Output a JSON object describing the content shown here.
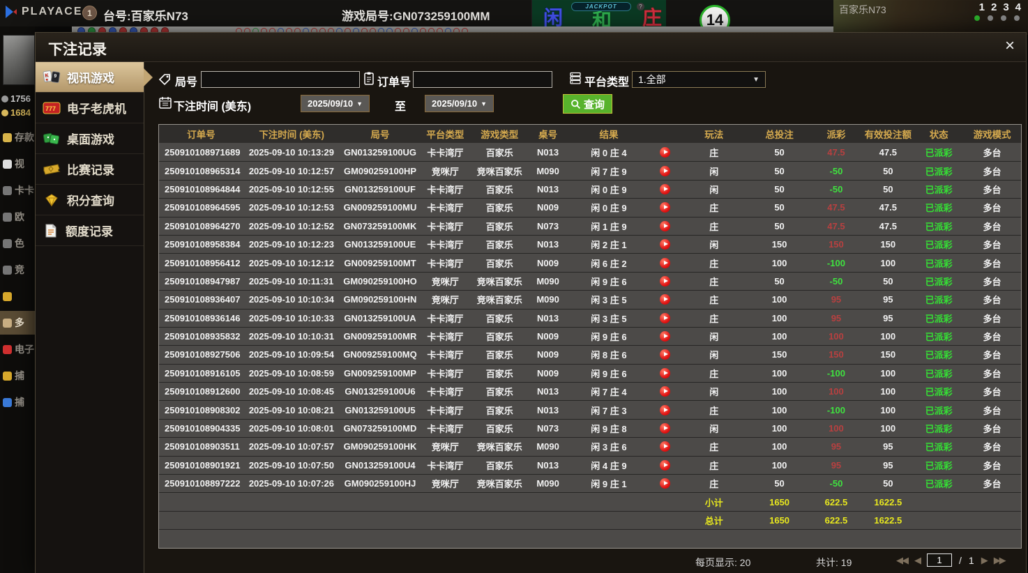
{
  "top_bar": {
    "brand": "PLAYACE",
    "round_badge": "1",
    "table_label": "台号:百家乐N73",
    "round_label": "游戏局号:GN073259100MM",
    "bet_player": "闲",
    "bet_tie": "和",
    "bet_banker": "庄",
    "jackpot_label": "JACKPOT",
    "question_mark": "?",
    "timer": "14",
    "video_title": "百家乐N73",
    "video_numbers": [
      "1",
      "2",
      "3",
      "4"
    ],
    "video_dot_colors": [
      "#2db52d",
      "#8a8a8a",
      "#8a8a8a",
      "#8a8a8a"
    ],
    "badge_colors": [
      "#3a5fc2",
      "#2f9e45",
      "#c23a3a",
      "#3a5fc2",
      "#c23a3a",
      "#3a5fc2",
      "#c23a3a",
      "#c23a3a",
      "#c23a3a"
    ],
    "bead_colors": [
      "#c23a3a",
      "#c23a3a",
      "#3aa34a",
      "#c23a3a",
      "#c23a3a",
      "#3a5fc2",
      "#c23a3a",
      "#c23a3a",
      "#3a5fc2",
      "#c23a3a",
      "#c23a3a",
      "#c23a3a",
      "#3a5fc2",
      "#c23a3a",
      "#3a5fc2",
      "#c23a3a",
      "#c23a3a",
      "#3a5fc2",
      "#3a5fc2",
      "#c23a3a",
      "#c23a3a",
      "#3a5fc2",
      "#c23a3a",
      "#c23a3a",
      "#c23a3a",
      "#3a5fc2",
      "#c23a3a",
      "#c23a3a"
    ]
  },
  "left_strip": {
    "balance_top": "1756",
    "balance_bottom": "1684",
    "items": [
      {
        "label": "存款",
        "color": "#d8b44a"
      },
      {
        "label": "视",
        "color": "#e0e0e0"
      },
      {
        "label": "卡卡",
        "color": "#777"
      },
      {
        "label": "欧",
        "color": "#777"
      },
      {
        "label": "色",
        "color": "#777"
      },
      {
        "label": "竞",
        "color": "#777"
      },
      {
        "label": "",
        "color": "#d8a92c"
      },
      {
        "label": "多",
        "color": "#c9af84",
        "active": true
      },
      {
        "label": "电子",
        "color": "#d03030"
      },
      {
        "label": "捕",
        "color": "#d8a92c"
      },
      {
        "label": "捕",
        "color": "#3a7ad8"
      }
    ]
  },
  "modal": {
    "title": "下注记录",
    "close": "×",
    "sidebar": [
      {
        "label": "视讯游戏",
        "icon": "cards-icon",
        "active": true
      },
      {
        "label": "电子老虎机",
        "icon": "slot-icon",
        "active": false
      },
      {
        "label": "桌面游戏",
        "icon": "table-games-icon",
        "active": false
      },
      {
        "label": "比赛记录",
        "icon": "ticket-icon",
        "active": false
      },
      {
        "label": "积分查询",
        "icon": "diamond-icon",
        "active": false
      },
      {
        "label": "额度记录",
        "icon": "document-icon",
        "active": false
      }
    ],
    "filters": {
      "round_label": "局号",
      "order_label": "订单号",
      "platform_label": "平台类型",
      "platform_value": "1.全部",
      "time_label": "下注时间 (美东)",
      "date_from": "2025/09/10",
      "date_to": "2025/09/10",
      "to_label": "至",
      "search_label": "查询"
    },
    "table": {
      "headers": [
        "订单号",
        "下注时间 (美东)",
        "局号",
        "平台类型",
        "游戏类型",
        "桌号",
        "结果",
        "玩法",
        "总投注",
        "派彩",
        "有效投注额",
        "状态",
        "游戏模式"
      ],
      "rows": [
        {
          "order": "250910108971689",
          "time": "2025-09-10 10:13:29",
          "round": "GN013259100UG",
          "platform": "卡卡湾厅",
          "game": "百家乐",
          "table": "N013",
          "result": "闲 0 庄 4",
          "wager": "庄",
          "bet": "50",
          "payout": "47.5",
          "valid": "47.5",
          "status": "已派彩",
          "mode": "多台"
        },
        {
          "order": "250910108965314",
          "time": "2025-09-10 10:12:57",
          "round": "GM090259100HP",
          "platform": "竞咪厅",
          "game": "竞咪百家乐",
          "table": "M090",
          "result": "闲 7 庄 9",
          "wager": "闲",
          "bet": "50",
          "payout": "-50",
          "valid": "50",
          "status": "已派彩",
          "mode": "多台"
        },
        {
          "order": "250910108964844",
          "time": "2025-09-10 10:12:55",
          "round": "GN013259100UF",
          "platform": "卡卡湾厅",
          "game": "百家乐",
          "table": "N013",
          "result": "闲 0 庄 9",
          "wager": "闲",
          "bet": "50",
          "payout": "-50",
          "valid": "50",
          "status": "已派彩",
          "mode": "多台"
        },
        {
          "order": "250910108964595",
          "time": "2025-09-10 10:12:53",
          "round": "GN009259100MU",
          "platform": "卡卡湾厅",
          "game": "百家乐",
          "table": "N009",
          "result": "闲 0 庄 9",
          "wager": "庄",
          "bet": "50",
          "payout": "47.5",
          "valid": "47.5",
          "status": "已派彩",
          "mode": "多台"
        },
        {
          "order": "250910108964270",
          "time": "2025-09-10 10:12:52",
          "round": "GN073259100MK",
          "platform": "卡卡湾厅",
          "game": "百家乐",
          "table": "N073",
          "result": "闲 1 庄 9",
          "wager": "庄",
          "bet": "50",
          "payout": "47.5",
          "valid": "47.5",
          "status": "已派彩",
          "mode": "多台"
        },
        {
          "order": "250910108958384",
          "time": "2025-09-10 10:12:23",
          "round": "GN013259100UE",
          "platform": "卡卡湾厅",
          "game": "百家乐",
          "table": "N013",
          "result": "闲 2 庄 1",
          "wager": "闲",
          "bet": "150",
          "payout": "150",
          "valid": "150",
          "status": "已派彩",
          "mode": "多台"
        },
        {
          "order": "250910108956412",
          "time": "2025-09-10 10:12:12",
          "round": "GN009259100MT",
          "platform": "卡卡湾厅",
          "game": "百家乐",
          "table": "N009",
          "result": "闲 6 庄 2",
          "wager": "庄",
          "bet": "100",
          "payout": "-100",
          "valid": "100",
          "status": "已派彩",
          "mode": "多台"
        },
        {
          "order": "250910108947987",
          "time": "2025-09-10 10:11:31",
          "round": "GM090259100HO",
          "platform": "竞咪厅",
          "game": "竞咪百家乐",
          "table": "M090",
          "result": "闲 9 庄 6",
          "wager": "庄",
          "bet": "50",
          "payout": "-50",
          "valid": "50",
          "status": "已派彩",
          "mode": "多台"
        },
        {
          "order": "250910108936407",
          "time": "2025-09-10 10:10:34",
          "round": "GM090259100HN",
          "platform": "竞咪厅",
          "game": "竞咪百家乐",
          "table": "M090",
          "result": "闲 3 庄 5",
          "wager": "庄",
          "bet": "100",
          "payout": "95",
          "valid": "95",
          "status": "已派彩",
          "mode": "多台"
        },
        {
          "order": "250910108936146",
          "time": "2025-09-10 10:10:33",
          "round": "GN013259100UA",
          "platform": "卡卡湾厅",
          "game": "百家乐",
          "table": "N013",
          "result": "闲 3 庄 5",
          "wager": "庄",
          "bet": "100",
          "payout": "95",
          "valid": "95",
          "status": "已派彩",
          "mode": "多台"
        },
        {
          "order": "250910108935832",
          "time": "2025-09-10 10:10:31",
          "round": "GN009259100MR",
          "platform": "卡卡湾厅",
          "game": "百家乐",
          "table": "N009",
          "result": "闲 9 庄 6",
          "wager": "闲",
          "bet": "100",
          "payout": "100",
          "valid": "100",
          "status": "已派彩",
          "mode": "多台"
        },
        {
          "order": "250910108927506",
          "time": "2025-09-10 10:09:54",
          "round": "GN009259100MQ",
          "platform": "卡卡湾厅",
          "game": "百家乐",
          "table": "N009",
          "result": "闲 8 庄 6",
          "wager": "闲",
          "bet": "150",
          "payout": "150",
          "valid": "150",
          "status": "已派彩",
          "mode": "多台"
        },
        {
          "order": "250910108916105",
          "time": "2025-09-10 10:08:59",
          "round": "GN009259100MP",
          "platform": "卡卡湾厅",
          "game": "百家乐",
          "table": "N009",
          "result": "闲 9 庄 6",
          "wager": "庄",
          "bet": "100",
          "payout": "-100",
          "valid": "100",
          "status": "已派彩",
          "mode": "多台"
        },
        {
          "order": "250910108912600",
          "time": "2025-09-10 10:08:45",
          "round": "GN013259100U6",
          "platform": "卡卡湾厅",
          "game": "百家乐",
          "table": "N013",
          "result": "闲 7 庄 4",
          "wager": "闲",
          "bet": "100",
          "payout": "100",
          "valid": "100",
          "status": "已派彩",
          "mode": "多台"
        },
        {
          "order": "250910108908302",
          "time": "2025-09-10 10:08:21",
          "round": "GN013259100U5",
          "platform": "卡卡湾厅",
          "game": "百家乐",
          "table": "N013",
          "result": "闲 7 庄 3",
          "wager": "庄",
          "bet": "100",
          "payout": "-100",
          "valid": "100",
          "status": "已派彩",
          "mode": "多台"
        },
        {
          "order": "250910108904335",
          "time": "2025-09-10 10:08:01",
          "round": "GN073259100MD",
          "platform": "卡卡湾厅",
          "game": "百家乐",
          "table": "N073",
          "result": "闲 9 庄 8",
          "wager": "闲",
          "bet": "100",
          "payout": "100",
          "valid": "100",
          "status": "已派彩",
          "mode": "多台"
        },
        {
          "order": "250910108903511",
          "time": "2025-09-10 10:07:57",
          "round": "GM090259100HK",
          "platform": "竞咪厅",
          "game": "竞咪百家乐",
          "table": "M090",
          "result": "闲 3 庄 6",
          "wager": "庄",
          "bet": "100",
          "payout": "95",
          "valid": "95",
          "status": "已派彩",
          "mode": "多台"
        },
        {
          "order": "250910108901921",
          "time": "2025-09-10 10:07:50",
          "round": "GN013259100U4",
          "platform": "卡卡湾厅",
          "game": "百家乐",
          "table": "N013",
          "result": "闲 4 庄 9",
          "wager": "庄",
          "bet": "100",
          "payout": "95",
          "valid": "95",
          "status": "已派彩",
          "mode": "多台"
        },
        {
          "order": "250910108897222",
          "time": "2025-09-10 10:07:26",
          "round": "GM090259100HJ",
          "platform": "竞咪厅",
          "game": "竞咪百家乐",
          "table": "M090",
          "result": "闲 9 庄 1",
          "wager": "庄",
          "bet": "50",
          "payout": "-50",
          "valid": "50",
          "status": "已派彩",
          "mode": "多台"
        }
      ],
      "subtotal": {
        "label": "小计",
        "bet": "1650",
        "payout": "622.5",
        "valid": "1622.5"
      },
      "total": {
        "label": "总计",
        "bet": "1650",
        "payout": "622.5",
        "valid": "1622.5"
      }
    },
    "footer": {
      "per_page_label": "每页显示:",
      "per_page_value": "20",
      "total_label": "共计:",
      "total_value": "19",
      "page": "1",
      "page_separator": "/",
      "page_total": "1"
    }
  },
  "colors": {
    "accent_gold": "#d4a94e",
    "status_green": "#35e035",
    "payout_positive_red": "#b84040",
    "payout_negative_green": "#3fe23f",
    "totals_yellow": "#e8e81e",
    "search_button_green": "#58b32c",
    "active_tab_tan": "#c9af84"
  }
}
